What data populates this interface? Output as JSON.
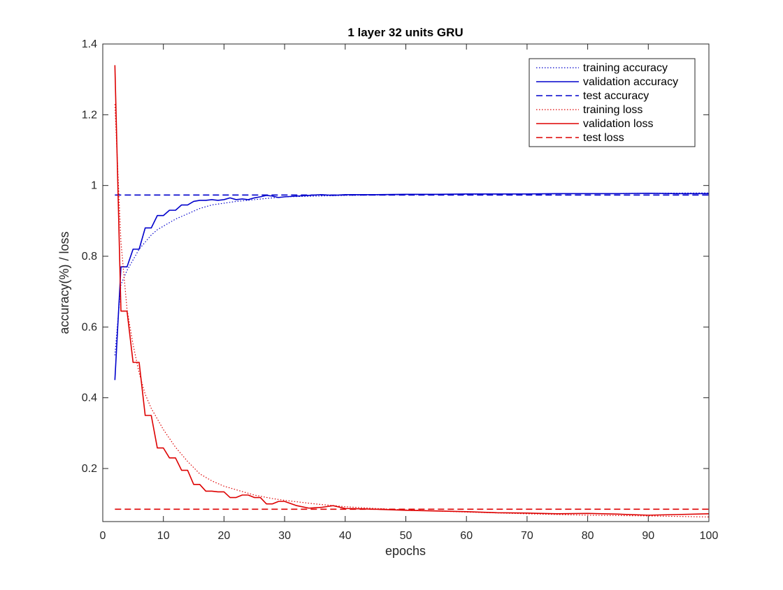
{
  "chart_data": {
    "type": "line",
    "title": "1 layer 32 units GRU",
    "xlabel": "epochs",
    "ylabel": "accuracy(%) / loss",
    "xlim": [
      0,
      100
    ],
    "ylim": [
      0.05,
      1.4
    ],
    "xticks": [
      0,
      10,
      20,
      30,
      40,
      50,
      60,
      70,
      80,
      90,
      100
    ],
    "xtick_labels": [
      "0",
      "10",
      "20",
      "30",
      "40",
      "50",
      "60",
      "70",
      "80",
      "90",
      "100"
    ],
    "yticks": [
      0.2,
      0.4,
      0.6,
      0.8,
      1.0,
      1.2,
      1.4
    ],
    "ytick_labels": [
      "0.2",
      "0.4",
      "0.6",
      "0.8",
      "1",
      "1.2",
      "1.4"
    ],
    "grid": false,
    "legend_position": "top-right",
    "series": [
      {
        "name": "training accuracy",
        "color": "#0000cc",
        "style": "dotted",
        "x": [
          2,
          3,
          4,
          5,
          6,
          7,
          8,
          9,
          10,
          12,
          14,
          16,
          18,
          20,
          22,
          25,
          28,
          30,
          35,
          40,
          45,
          50,
          60,
          70,
          80,
          90,
          100
        ],
        "y": [
          0.52,
          0.72,
          0.76,
          0.79,
          0.82,
          0.84,
          0.86,
          0.875,
          0.885,
          0.905,
          0.92,
          0.935,
          0.945,
          0.95,
          0.955,
          0.96,
          0.965,
          0.968,
          0.97,
          0.972,
          0.973,
          0.974,
          0.975,
          0.976,
          0.977,
          0.978,
          0.979
        ]
      },
      {
        "name": "validation accuracy",
        "color": "#0000cc",
        "style": "solid",
        "x": [
          2,
          3,
          4,
          5,
          6,
          7,
          8,
          9,
          10,
          11,
          12,
          13,
          14,
          15,
          16,
          17,
          18,
          19,
          20,
          21,
          22,
          23,
          24,
          25,
          26,
          27,
          28,
          29,
          30,
          32,
          34,
          36,
          38,
          40,
          45,
          50,
          55,
          60,
          65,
          70,
          75,
          80,
          85,
          90,
          95,
          100
        ],
        "y": [
          0.45,
          0.77,
          0.77,
          0.82,
          0.82,
          0.88,
          0.88,
          0.915,
          0.915,
          0.93,
          0.93,
          0.945,
          0.945,
          0.955,
          0.958,
          0.958,
          0.96,
          0.958,
          0.96,
          0.965,
          0.96,
          0.962,
          0.96,
          0.965,
          0.968,
          0.972,
          0.97,
          0.966,
          0.968,
          0.97,
          0.972,
          0.974,
          0.972,
          0.974,
          0.974,
          0.975,
          0.975,
          0.976,
          0.976,
          0.976,
          0.977,
          0.977,
          0.977,
          0.978,
          0.977,
          0.977
        ]
      },
      {
        "name": "test accuracy",
        "color": "#0000cc",
        "style": "dashed",
        "x": [
          2,
          100
        ],
        "y": [
          0.973,
          0.973
        ]
      },
      {
        "name": "training loss",
        "color": "#dd0000",
        "style": "dotted",
        "x": [
          2,
          3,
          4,
          5,
          6,
          7,
          8,
          9,
          10,
          12,
          14,
          16,
          18,
          20,
          22,
          25,
          28,
          30,
          35,
          40,
          45,
          50,
          60,
          70,
          80,
          90,
          100
        ],
        "y": [
          1.23,
          0.84,
          0.65,
          0.55,
          0.47,
          0.41,
          0.37,
          0.34,
          0.31,
          0.26,
          0.22,
          0.185,
          0.165,
          0.15,
          0.14,
          0.125,
          0.115,
          0.11,
          0.1,
          0.092,
          0.087,
          0.083,
          0.077,
          0.072,
          0.068,
          0.066,
          0.063
        ]
      },
      {
        "name": "validation loss",
        "color": "#dd0000",
        "style": "solid",
        "x": [
          2,
          3,
          4,
          5,
          6,
          7,
          8,
          9,
          10,
          11,
          12,
          13,
          14,
          15,
          16,
          17,
          18,
          19,
          20,
          21,
          22,
          23,
          24,
          25,
          26,
          27,
          28,
          29,
          30,
          32,
          34,
          36,
          38,
          40,
          45,
          50,
          55,
          60,
          65,
          70,
          75,
          80,
          85,
          90,
          95,
          100
        ],
        "y": [
          1.34,
          0.645,
          0.645,
          0.5,
          0.5,
          0.35,
          0.35,
          0.258,
          0.258,
          0.23,
          0.23,
          0.195,
          0.195,
          0.155,
          0.155,
          0.136,
          0.136,
          0.134,
          0.134,
          0.118,
          0.118,
          0.125,
          0.125,
          0.118,
          0.118,
          0.1,
          0.1,
          0.107,
          0.107,
          0.095,
          0.088,
          0.09,
          0.095,
          0.087,
          0.085,
          0.082,
          0.08,
          0.078,
          0.075,
          0.074,
          0.072,
          0.073,
          0.071,
          0.068,
          0.07,
          0.072
        ]
      },
      {
        "name": "test loss",
        "color": "#dd0000",
        "style": "dashed",
        "x": [
          2,
          100
        ],
        "y": [
          0.085,
          0.085
        ]
      }
    ]
  }
}
